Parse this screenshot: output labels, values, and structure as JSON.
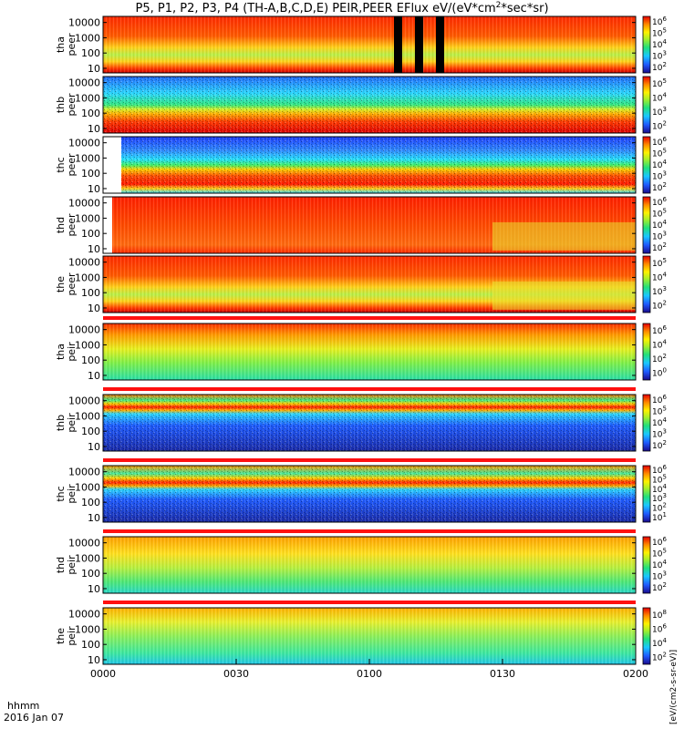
{
  "title": "P5, P1, P2, P3, P4 (TH-A,B,C,D,E) PEIR,PEER EFlux eV/(eV*cm",
  "title_sup": "2",
  "title_tail": "*sec*sr)",
  "colorbar_label": "[eV/(cm2-s-sr-eV)]",
  "footer": {
    "line1": "hhmm",
    "line2": "2016 Jan 07"
  },
  "chart_data": {
    "type": "heatmap",
    "x_ticks": [
      "0000",
      "0030",
      "0100",
      "0130",
      "0200"
    ],
    "y_ticks": [
      "10",
      "100",
      "1000",
      "10000"
    ],
    "yscale": "log",
    "ylim_eV": [
      5,
      25000
    ],
    "panels": [
      {
        "probe": "tha",
        "species": "peer",
        "cb_ticks": [
          "10",
          "10",
          "10",
          "10",
          "10"
        ],
        "cb_exp": [
          "2",
          "3",
          "4",
          "5",
          "6"
        ]
      },
      {
        "probe": "thb",
        "species": "peer",
        "cb_ticks": [
          "10",
          "10",
          "10",
          "10"
        ],
        "cb_exp": [
          "2",
          "3",
          "4",
          "5"
        ]
      },
      {
        "probe": "thc",
        "species": "peer",
        "cb_ticks": [
          "10",
          "10",
          "10",
          "10",
          "10"
        ],
        "cb_exp": [
          "2",
          "3",
          "4",
          "5",
          "6"
        ]
      },
      {
        "probe": "thd",
        "species": "peer",
        "cb_ticks": [
          "10",
          "10",
          "10",
          "10",
          "10"
        ],
        "cb_exp": [
          "2",
          "3",
          "4",
          "5",
          "6"
        ]
      },
      {
        "probe": "the",
        "species": "peer",
        "cb_ticks": [
          "10",
          "10",
          "10",
          "10"
        ],
        "cb_exp": [
          "2",
          "3",
          "4",
          "5"
        ]
      },
      {
        "probe": "tha",
        "species": "peir",
        "cb_ticks": [
          "10",
          "10",
          "10",
          "10"
        ],
        "cb_exp": [
          "0",
          "2",
          "4",
          "6"
        ]
      },
      {
        "probe": "thb",
        "species": "peir",
        "cb_ticks": [
          "10",
          "10",
          "10",
          "10",
          "10"
        ],
        "cb_exp": [
          "2",
          "3",
          "4",
          "5",
          "6"
        ]
      },
      {
        "probe": "thc",
        "species": "peir",
        "cb_ticks": [
          "10",
          "10",
          "10",
          "10",
          "10",
          "10"
        ],
        "cb_exp": [
          "1",
          "2",
          "3",
          "4",
          "5",
          "6"
        ]
      },
      {
        "probe": "thd",
        "species": "peir",
        "cb_ticks": [
          "10",
          "10",
          "10",
          "10",
          "10"
        ],
        "cb_exp": [
          "2",
          "3",
          "4",
          "5",
          "6"
        ]
      },
      {
        "probe": "the",
        "species": "peir",
        "cb_ticks": [
          "10",
          "10",
          "10",
          "10"
        ],
        "cb_exp": [
          "2",
          "4",
          "6",
          "8"
        ]
      }
    ]
  }
}
